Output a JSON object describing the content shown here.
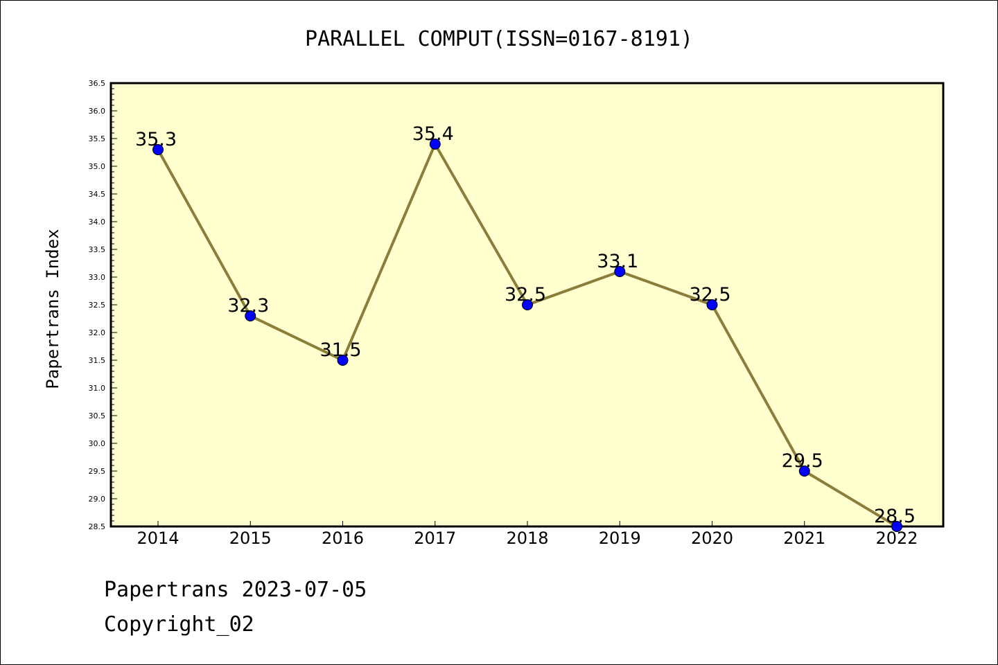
{
  "chart_data": {
    "type": "line",
    "title": "PARALLEL COMPUT(ISSN=0167-8191)",
    "xlabel": "",
    "ylabel": "Papertrans Index",
    "categories": [
      "2014",
      "2015",
      "2016",
      "2017",
      "2018",
      "2019",
      "2020",
      "2021",
      "2022"
    ],
    "values": [
      35.3,
      32.3,
      31.5,
      35.4,
      32.5,
      33.1,
      32.5,
      29.5,
      28.5
    ],
    "data_labels": [
      "35.3",
      "32.3",
      "31.5",
      "35.4",
      "32.5",
      "33.1",
      "32.5",
      "29.5",
      "28.5"
    ],
    "ylim": [
      28.5,
      36.5
    ],
    "yticks": [
      "28.5",
      "29.0",
      "29.5",
      "30.0",
      "30.5",
      "31.0",
      "31.5",
      "32.0",
      "32.5",
      "33.0",
      "33.5",
      "34.0",
      "34.5",
      "35.0",
      "35.5",
      "36.0",
      "36.5"
    ],
    "grid": false,
    "legend": "none",
    "colors": {
      "plot_background": "#ffffd0",
      "line": "#8b7d3a",
      "marker": "#0000ff"
    }
  },
  "footer": {
    "line1": "Papertrans 2023-07-05",
    "line2": "Copyright_02"
  }
}
